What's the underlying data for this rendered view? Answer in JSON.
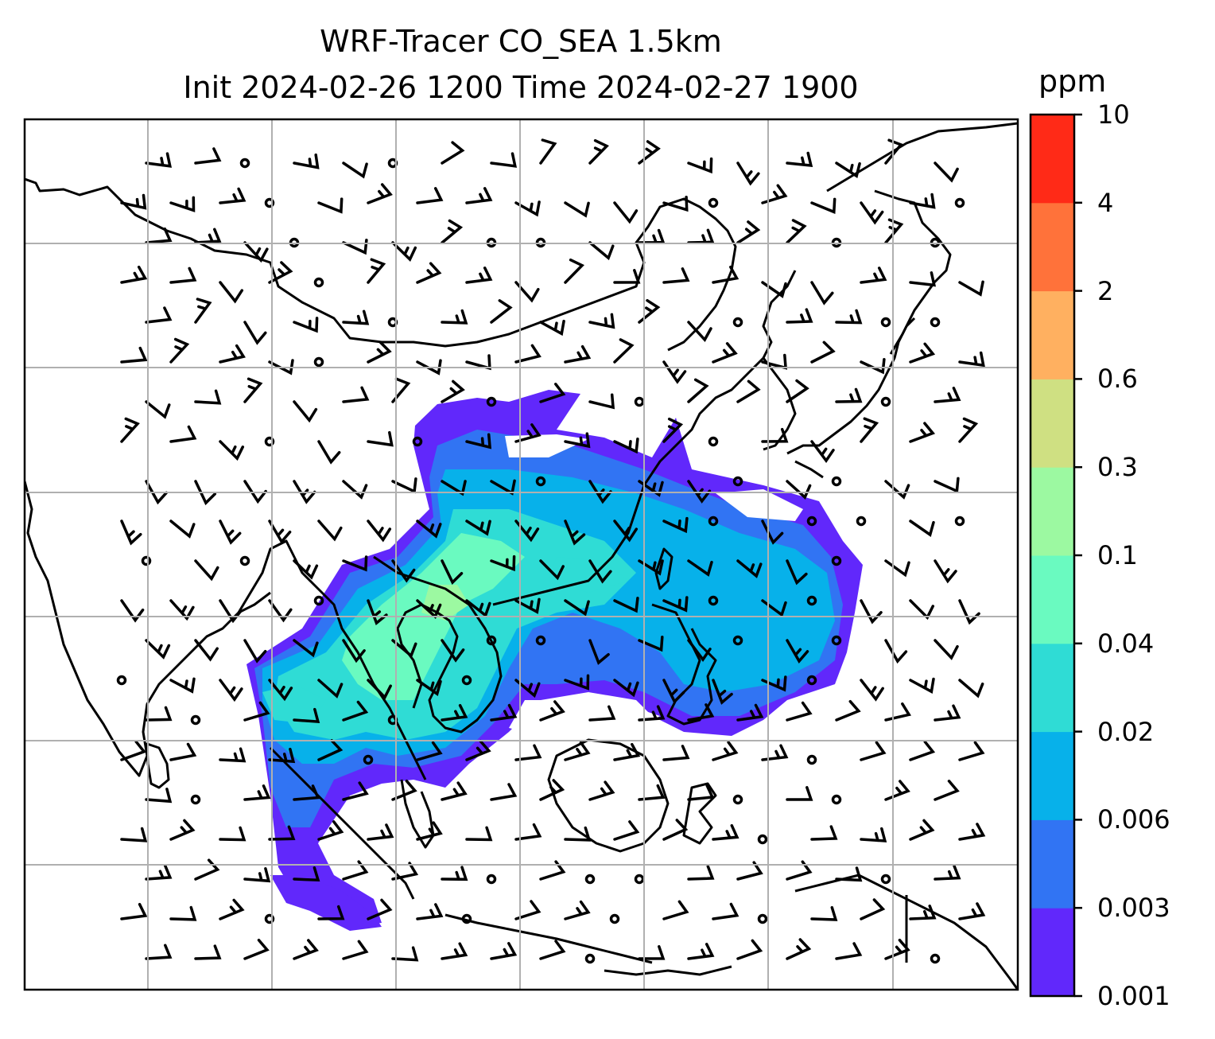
{
  "title": {
    "line1": "WRF-Tracer CO_SEA 1.5km",
    "line2": "Init 2024-02-26 1200 Time 2024-02-27 1900"
  },
  "colorbar": {
    "unit": "ppm",
    "levels": [
      "0.001",
      "0.003",
      "0.006",
      "0.02",
      "0.04",
      "0.1",
      "0.3",
      "0.6",
      "2",
      "4",
      "10"
    ],
    "colors": [
      "#6128fb",
      "#3174f3",
      "#07b1ea",
      "#2fdcd5",
      "#6afac0",
      "#9cf9a1",
      "#cfe082",
      "#ffb060",
      "#ff723a",
      "#ff2a17"
    ]
  },
  "map": {
    "gridlines": true,
    "background": "#ffffff",
    "grid_color": "#b0b0b0",
    "coastline_color": "#000000"
  }
}
